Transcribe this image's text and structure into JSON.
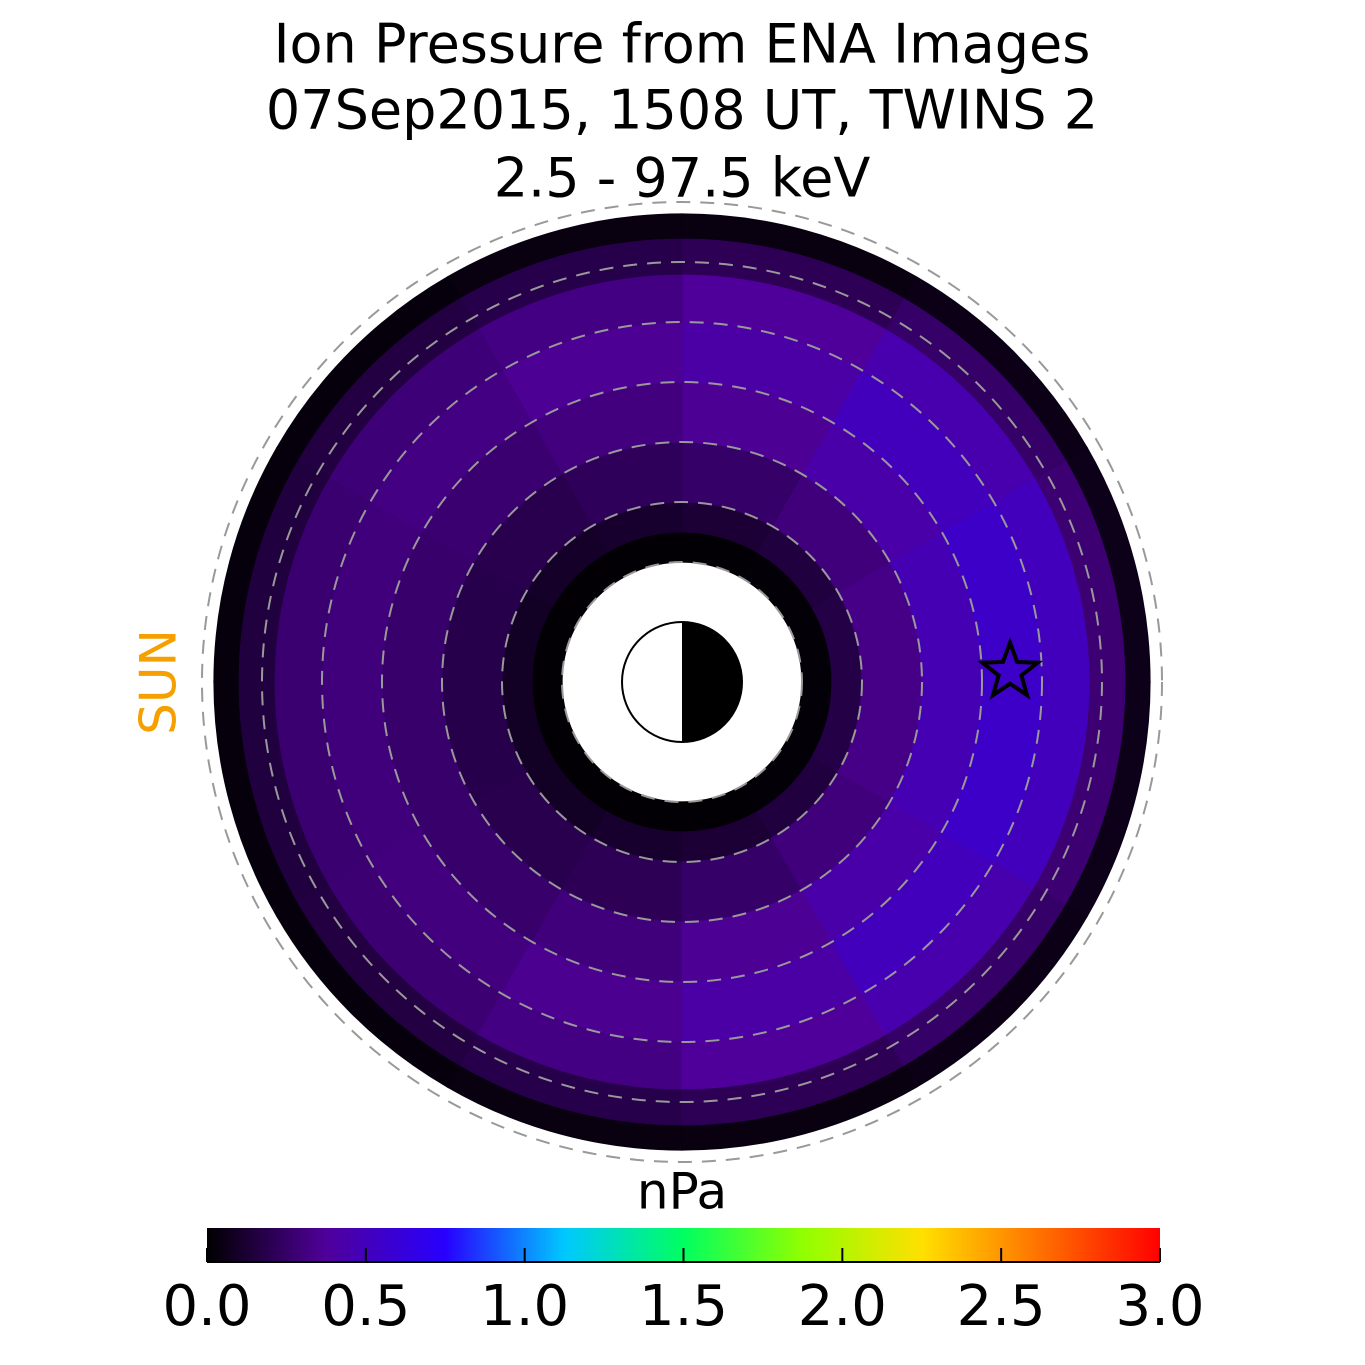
{
  "chart_data": {
    "type": "polar_image",
    "title": [
      "Ion Pressure from  ENA Images",
      "07Sep2015, 1508 UT,  TWINS 2",
      "2.5 - 97.5 keV"
    ],
    "sun_label": "SUN",
    "colorbar_label": "nPa",
    "mlt_bins": [
      0,
      2,
      4,
      6,
      8,
      10,
      12,
      14,
      16,
      18,
      20,
      22,
      24
    ],
    "r_bins": [
      2,
      2.5,
      3,
      4,
      5,
      6,
      6.8,
      7.4,
      7.8
    ],
    "values": [
      [
        0.02,
        0.17,
        0.33,
        0.47,
        0.55,
        0.5,
        0.28,
        0.06
      ],
      [
        0.02,
        0.15,
        0.3,
        0.43,
        0.5,
        0.45,
        0.25,
        0.05
      ],
      [
        0.01,
        0.13,
        0.25,
        0.36,
        0.42,
        0.38,
        0.21,
        0.04
      ],
      [
        0.01,
        0.11,
        0.22,
        0.31,
        0.36,
        0.32,
        0.18,
        0.04
      ],
      [
        0.01,
        0.1,
        0.19,
        0.27,
        0.32,
        0.29,
        0.16,
        0.03
      ],
      [
        0.01,
        0.09,
        0.18,
        0.26,
        0.3,
        0.27,
        0.15,
        0.03
      ],
      [
        0.01,
        0.09,
        0.18,
        0.26,
        0.3,
        0.27,
        0.15,
        0.03
      ],
      [
        0.01,
        0.09,
        0.19,
        0.26,
        0.31,
        0.28,
        0.16,
        0.03
      ],
      [
        0.01,
        0.11,
        0.21,
        0.3,
        0.35,
        0.32,
        0.18,
        0.04
      ],
      [
        0.01,
        0.13,
        0.25,
        0.36,
        0.42,
        0.38,
        0.21,
        0.04
      ],
      [
        0.02,
        0.15,
        0.3,
        0.43,
        0.5,
        0.45,
        0.25,
        0.05
      ],
      [
        0.02,
        0.17,
        0.33,
        0.47,
        0.55,
        0.5,
        0.28,
        0.06
      ]
    ],
    "rlim": [
      0,
      8
    ],
    "rticks": [
      2,
      3,
      4,
      5,
      6,
      7,
      8
    ],
    "star": {
      "r": 5.47,
      "mlt": 0.12
    },
    "clim": [
      0,
      3
    ],
    "cticks": [
      {
        "value": 0,
        "label": "0.0"
      },
      {
        "value": 0.5,
        "label": "0.5"
      },
      {
        "value": 1,
        "label": "1.0"
      },
      {
        "value": 1.5,
        "label": "1.5"
      },
      {
        "value": 2,
        "label": "2.0"
      },
      {
        "value": 2.5,
        "label": "2.5"
      },
      {
        "value": 3,
        "label": "3.0"
      }
    ],
    "colormap": [
      "#000000",
      "#50009a",
      "#2800ff",
      "#00c8ff",
      "#00ff60",
      "#90ff00",
      "#ffe000",
      "#ff7000",
      "#ff0000"
    ]
  }
}
